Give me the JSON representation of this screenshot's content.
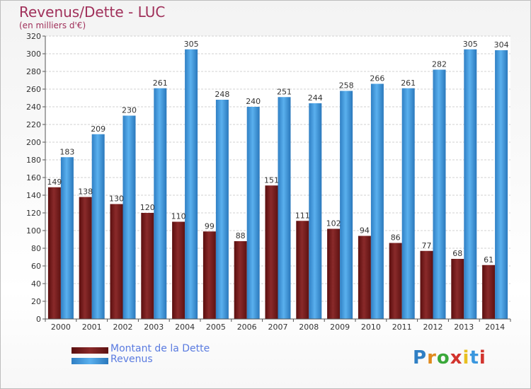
{
  "header": {
    "title": "Revenus/Dette - LUC",
    "subtitle": "(en milliers d'€)"
  },
  "colors": {
    "dette": "#7a1f1f",
    "revenus": "#3a97de",
    "title": "#a0305a",
    "legend_text": "#5a7be0"
  },
  "logo": {
    "text": "Proxiti"
  },
  "chart_data": {
    "type": "bar",
    "title": "Revenus/Dette - LUC",
    "subtitle": "(en milliers d'€)",
    "xlabel": "",
    "ylabel": "",
    "ylim": [
      0,
      320
    ],
    "ytick_step": 20,
    "grid": true,
    "legend_position": "bottom-left",
    "categories": [
      "2000",
      "2001",
      "2002",
      "2003",
      "2004",
      "2005",
      "2006",
      "2007",
      "2008",
      "2009",
      "2010",
      "2011",
      "2012",
      "2013",
      "2014"
    ],
    "series": [
      {
        "name": "Montant de la Dette",
        "color": "#7a1f1f",
        "values": [
          149,
          138,
          130,
          120,
          110,
          99,
          88,
          151,
          111,
          102,
          94,
          86,
          77,
          68,
          61
        ]
      },
      {
        "name": "Revenus",
        "color": "#3a97de",
        "values": [
          183,
          209,
          230,
          261,
          305,
          248,
          240,
          251,
          244,
          258,
          266,
          261,
          282,
          305,
          304
        ]
      }
    ]
  }
}
